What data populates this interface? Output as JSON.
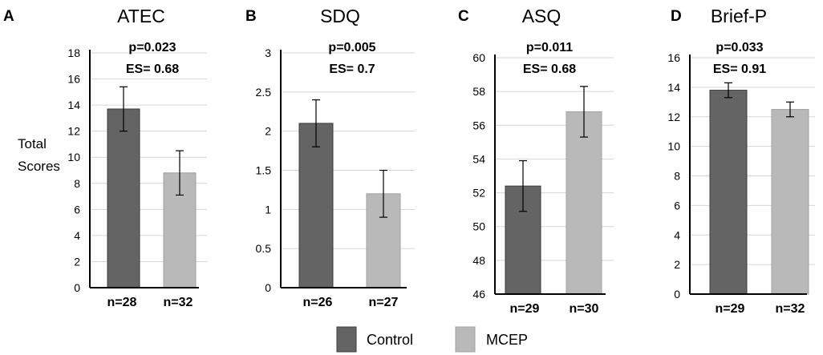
{
  "y_label_lines": [
    "Total",
    "Scores"
  ],
  "colors": {
    "control": "#646464",
    "mcep": "#b9b9b9",
    "grid": "#d6d6d6",
    "axis": "#000000"
  },
  "legend": [
    {
      "label": "Control",
      "color": "#646464"
    },
    {
      "label": "MCEP",
      "color": "#b9b9b9"
    }
  ],
  "chart_data": [
    {
      "type": "bar",
      "panel": "A",
      "title": "ATEC",
      "categories": [
        "Control",
        "MCEP"
      ],
      "values": [
        13.7,
        8.8
      ],
      "errors": [
        1.7,
        1.7
      ],
      "n_labels": [
        "n=28",
        "n=32"
      ],
      "p_text": "p=0.023",
      "es_text": "ES= 0.68",
      "ylim": [
        0,
        18
      ],
      "yticks": [
        0,
        2,
        4,
        6,
        8,
        10,
        12,
        14,
        16,
        18
      ],
      "ytick_labels": [
        "0",
        "2",
        "4",
        "6",
        "8",
        "10",
        "12",
        "14",
        "16",
        "18"
      ],
      "grid": true
    },
    {
      "type": "bar",
      "panel": "B",
      "title": "SDQ",
      "categories": [
        "Control",
        "MCEP"
      ],
      "values": [
        2.1,
        1.2
      ],
      "errors": [
        0.3,
        0.3
      ],
      "n_labels": [
        "n=26",
        "n=27"
      ],
      "p_text": "p=0.005",
      "es_text": "ES= 0.7",
      "ylim": [
        0,
        3
      ],
      "yticks": [
        0,
        0.5,
        1,
        1.5,
        2,
        2.5,
        3
      ],
      "ytick_labels": [
        "0",
        "0.5",
        "1",
        "1.5",
        "2",
        "2.5",
        "3"
      ],
      "grid": true
    },
    {
      "type": "bar",
      "panel": "C",
      "title": "ASQ",
      "categories": [
        "Control",
        "MCEP"
      ],
      "values": [
        52.4,
        56.8
      ],
      "errors": [
        1.5,
        1.5
      ],
      "n_labels": [
        "n=29",
        "n=30"
      ],
      "p_text": "p=0.011",
      "es_text": "ES= 0.68",
      "ylim": [
        46,
        60
      ],
      "yticks": [
        46,
        48,
        50,
        52,
        54,
        56,
        58,
        60
      ],
      "ytick_labels": [
        "46",
        "48",
        "50",
        "52",
        "54",
        "56",
        "58",
        "60"
      ],
      "grid": true
    },
    {
      "type": "bar",
      "panel": "D",
      "title": "Brief-P",
      "categories": [
        "Control",
        "MCEP"
      ],
      "values": [
        13.8,
        12.5
      ],
      "errors": [
        0.5,
        0.5
      ],
      "n_labels": [
        "n=29",
        "n=32"
      ],
      "p_text": "p=0.033",
      "es_text": "ES= 0.91",
      "ylim": [
        0,
        16
      ],
      "yticks": [
        0,
        2,
        4,
        6,
        8,
        10,
        12,
        14,
        16
      ],
      "ytick_labels": [
        "0",
        "2",
        "4",
        "6",
        "8",
        "10",
        "12",
        "14",
        "16"
      ],
      "grid": true
    }
  ]
}
